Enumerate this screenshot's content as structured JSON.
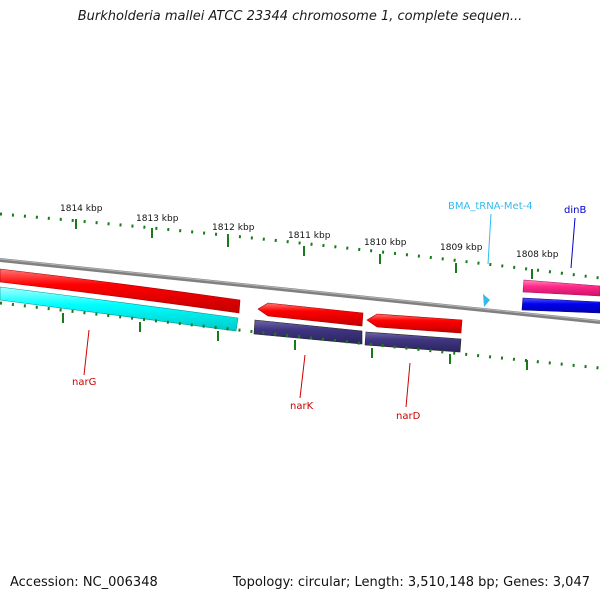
{
  "title": "Burkholderia mallei ATCC 23344 chromosome 1, complete sequen...",
  "footer": {
    "accession": "Accession: NC_006348",
    "summary": "Topology: circular; Length: 3,510,148 bp; Genes: 3,047"
  },
  "scale_labels": [
    "1814 kbp",
    "1813 kbp",
    "1812 kbp",
    "1811 kbp",
    "1810 kbp",
    "1809 kbp",
    "1808 kbp"
  ],
  "features": {
    "narG": "narG",
    "narK": "narK",
    "narD": "narD",
    "trna": "BMA_tRNA-Met-4",
    "dinB": "dinB"
  },
  "colors": {
    "forward_gene": "#ff0000",
    "reverse_cds": "#00ffff",
    "reverse_alt": "#3f3580",
    "trna": "#33bbee",
    "dinB_label": "#0000cc",
    "dinB_top": "#ff2a8a",
    "dinB_bottom": "#0000ee",
    "backbone": "#808080",
    "ticks": "#1a7a1a",
    "label_red": "#cc0000"
  }
}
